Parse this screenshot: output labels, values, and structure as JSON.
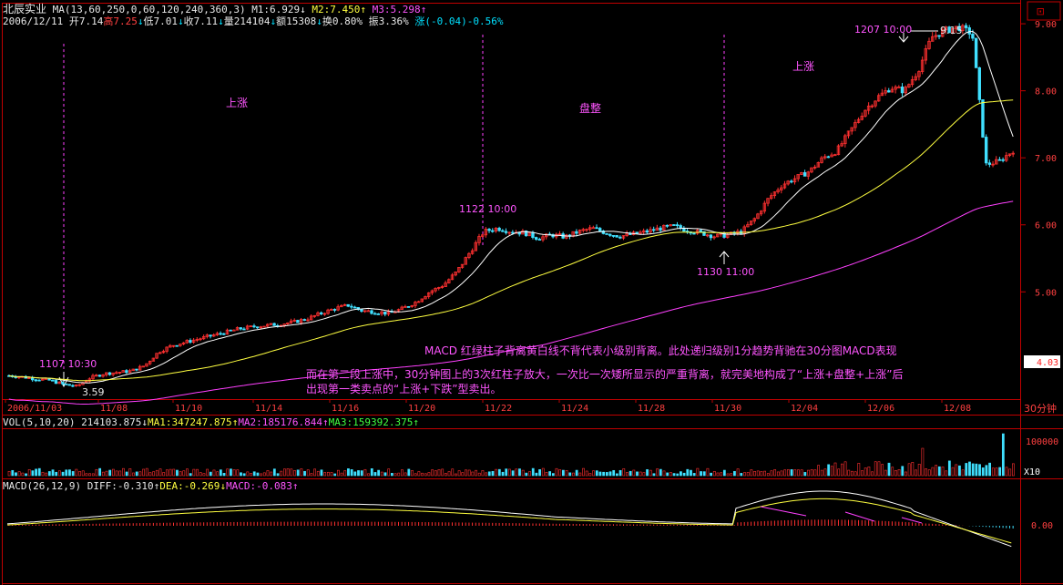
{
  "header": {
    "stock_name": "北辰实业",
    "ma_params": "MA(13,60,250,0,60,120,240,360,3)",
    "m1": "M1:6.929",
    "m2": "M2:7.450",
    "m3": "M3:5.298",
    "date": "2006/12/11",
    "open": "开7.14",
    "high": "高7.25",
    "low": "低7.01",
    "close": "收7.11",
    "volume": "量214104",
    "amount": "额15308",
    "turnover": "换0.80%",
    "amplitude": "振3.36%",
    "change": "涨(-0.04)-0.56%"
  },
  "vol_header": {
    "params": "VOL(5,10,20)",
    "value": "214103.875",
    "ma1": "MA1:347247.875",
    "ma2": "MA2:185176.844",
    "ma3": "MA3:159392.375"
  },
  "macd_header": {
    "params": "MACD(26,12,9)",
    "diff": "DIFF:-0.310",
    "dea": "DEA:-0.269",
    "macd": "MACD:-0.083"
  },
  "annotations": {
    "phase1": "上涨",
    "phase2": "盘整",
    "phase3": "上涨",
    "low_time": "1107 10:30",
    "low_price": "3.59",
    "top1_time": "1122 10:00",
    "bottom2_time": "1130 11:00",
    "top2_time": "1207 10:00",
    "top2_price": "9.15",
    "note1": "MACD 红绿柱子背离黄白线不背代表小级别背离。此处递归级别1分趋势背驰在30分图MACD表现",
    "note2": "而在第二段上涨中，30分钟图上的3次红柱子放大，一次比一次矮所显示的严重背离，就完美地构成了“上涨+盘整+上涨”后",
    "note3": "出现第一类卖点的“上涨+下跌”型卖出。"
  },
  "right_axis": {
    "current_price": "4.03",
    "period": "30分钟",
    "vol_tick": "100000",
    "vol_unit": "X10",
    "macd_tick": "0.00"
  },
  "colors": {
    "up": "#ff3030",
    "down": "#40e0ff",
    "ma1": "#ffffff",
    "ma2": "#ffff40",
    "ma3": "#ff40ff",
    "axis": "#c00000"
  },
  "chart_data": {
    "type": "candlestick",
    "price_axis": {
      "ylim": [
        3.4,
        9.3
      ],
      "ticks": [
        "5.00",
        "6.00",
        "7.00",
        "8.00",
        "9.00"
      ]
    },
    "x_ticks": [
      "2006/11/03",
      "11/08",
      "11/10",
      "11/14",
      "11/16",
      "11/20",
      "11/22",
      "11/24",
      "11/28",
      "11/30",
      "12/04",
      "12/06",
      "12/08"
    ],
    "close_path": [
      3.75,
      3.73,
      3.7,
      3.68,
      3.62,
      3.59,
      3.72,
      3.78,
      3.8,
      3.82,
      3.9,
      4.1,
      4.2,
      4.25,
      4.3,
      4.35,
      4.4,
      4.45,
      4.48,
      4.5,
      4.52,
      4.55,
      4.6,
      4.68,
      4.75,
      4.8,
      4.72,
      4.7,
      4.68,
      4.75,
      4.85,
      5.0,
      5.1,
      5.3,
      5.6,
      5.9,
      5.95,
      5.9,
      5.88,
      5.8,
      5.85,
      5.82,
      5.9,
      5.95,
      5.88,
      5.83,
      5.86,
      5.9,
      5.95,
      5.98,
      5.92,
      5.88,
      5.83,
      5.85,
      5.9,
      6.1,
      6.4,
      6.6,
      6.7,
      6.8,
      7.0,
      7.1,
      7.4,
      7.7,
      7.9,
      8.05,
      8.0,
      8.3,
      8.8,
      8.9,
      8.95,
      8.85,
      6.9,
      6.95,
      7.11
    ],
    "ma_levels": {
      "M1": 6.929,
      "M2": 7.45,
      "M3": 5.298
    }
  }
}
